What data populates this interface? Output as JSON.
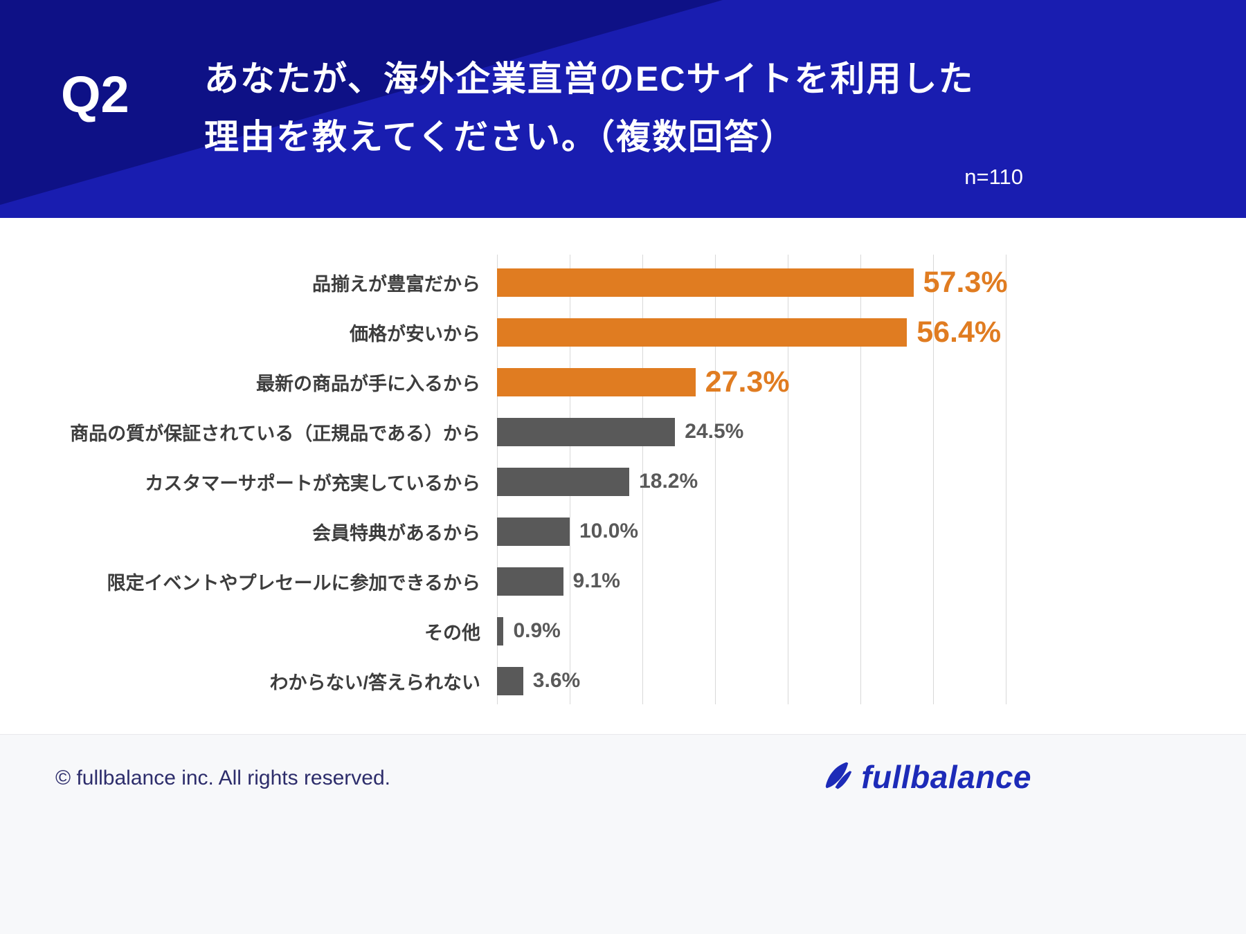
{
  "header": {
    "q_label": "Q2",
    "title_line1": "あなたが、海外企業直営のECサイトを利用した",
    "title_line2": "理由を教えてください。（複数回答）",
    "sample_size": "n=110"
  },
  "chart_data": {
    "type": "bar",
    "orientation": "horizontal",
    "categories": [
      "品揃えが豊富だから",
      "価格が安いから",
      "最新の商品が手に入るから",
      "商品の質が保証されている（正規品である）から",
      "カスタマーサポートが充実しているから",
      "会員特典があるから",
      "限定イベントやプレセールに参加できるから",
      "その他",
      "わからない/答えられない"
    ],
    "values": [
      57.3,
      56.4,
      27.3,
      24.5,
      18.2,
      10.0,
      9.1,
      0.9,
      3.6
    ],
    "value_labels": [
      "57.3%",
      "56.4%",
      "27.3%",
      "24.5%",
      "18.2%",
      "10.0%",
      "9.1%",
      "0.9%",
      "3.6%"
    ],
    "highlight_indices": [
      0,
      1,
      2
    ],
    "highlight_color": "#e07c21",
    "default_color": "#595959",
    "xlim": [
      0,
      70
    ],
    "gridline_interval": 10,
    "grid": true,
    "legend": false,
    "title": "あなたが、海外企業直営のECサイトを利用した理由を教えてください。（複数回答）",
    "xlabel": "",
    "ylabel": ""
  },
  "footer": {
    "copyright": "© fullbalance inc. All rights reserved.",
    "brand": "fullbalance"
  },
  "colors": {
    "header_bg": "#191db0",
    "header_bg_dark": "#0e1186",
    "accent_orange": "#e07c21",
    "bar_gray": "#595959",
    "brand_blue": "#1d2bb8"
  }
}
